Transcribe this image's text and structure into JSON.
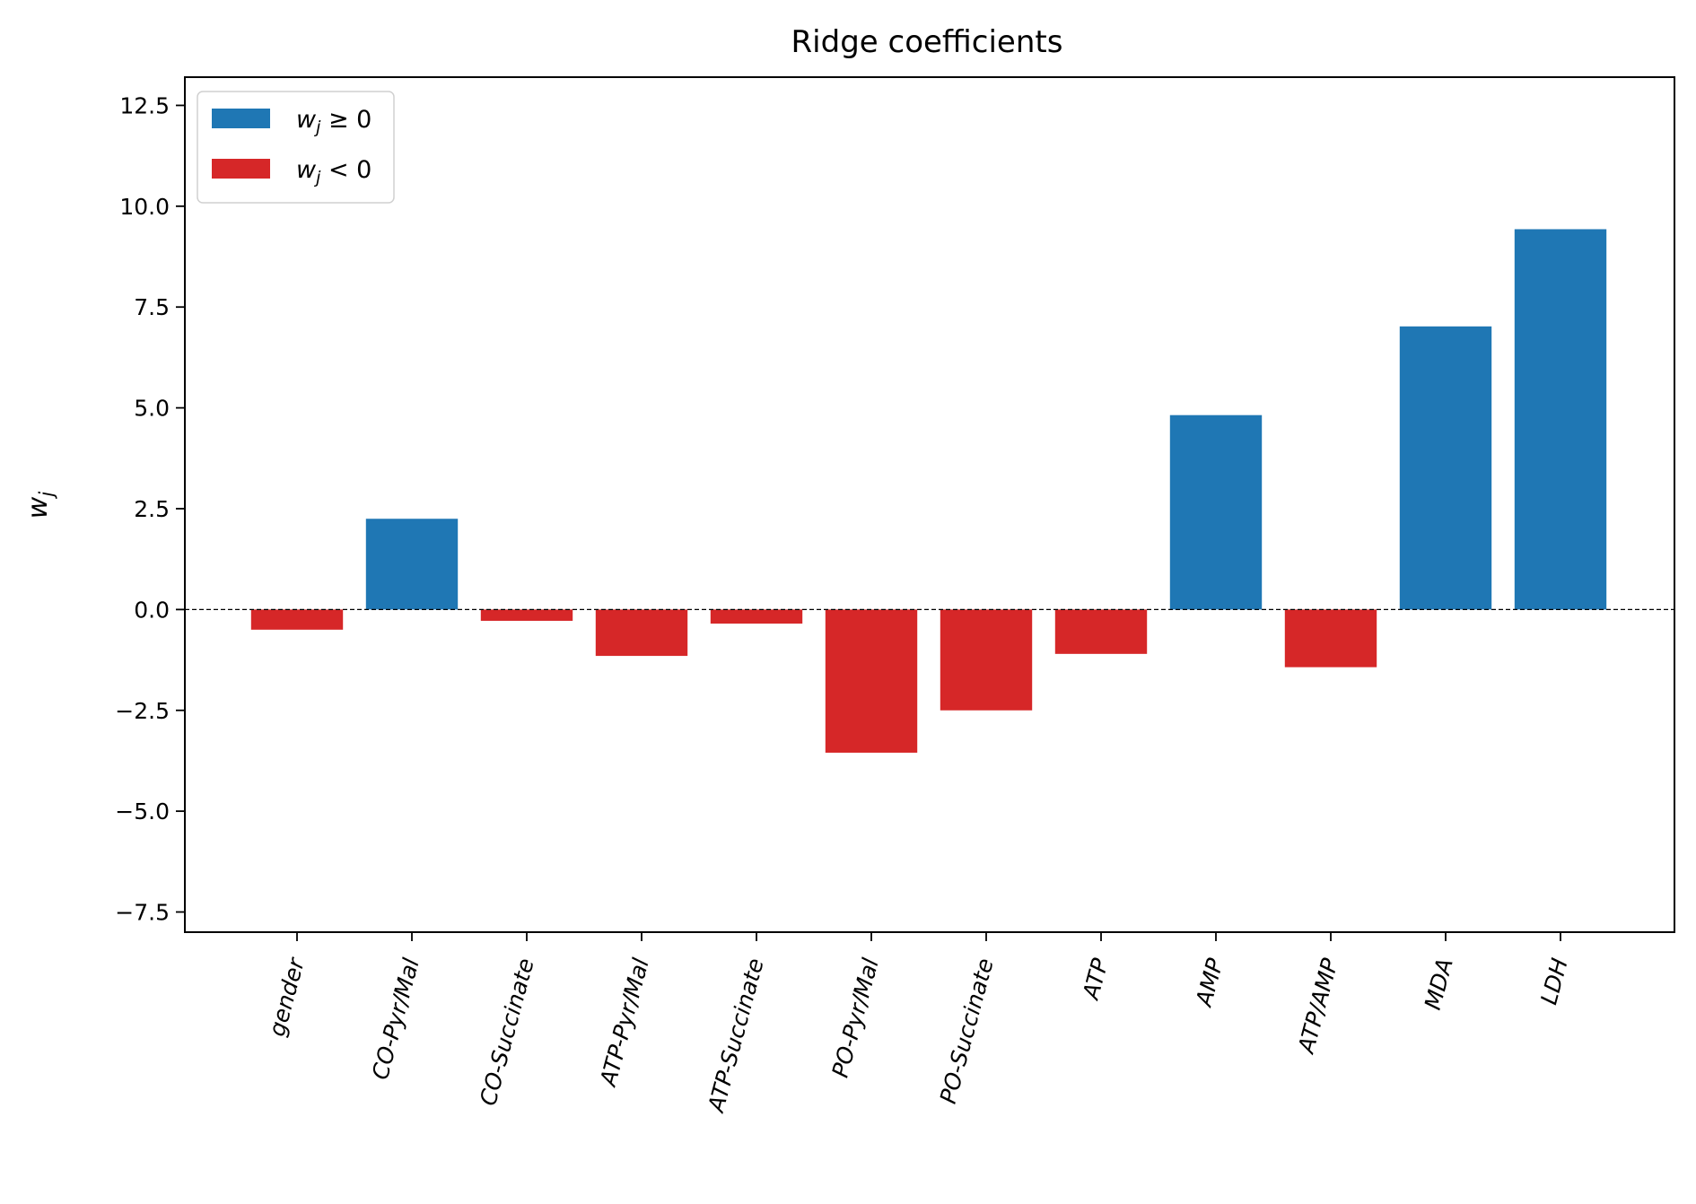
{
  "chart_data": {
    "type": "bar",
    "title": "Ridge coefficients",
    "xlabel": "",
    "ylabel": "w_j",
    "ylim": [
      -8.0,
      13.2
    ],
    "yticks": [
      12.5,
      10.0,
      7.5,
      5.0,
      2.5,
      0.0,
      -2.5,
      -5.0,
      -7.5
    ],
    "ytick_labels": [
      "12.5",
      "10.0",
      "7.5",
      "5.0",
      "2.5",
      "0.0",
      "−2.5",
      "−5.0",
      "−7.5"
    ],
    "categories": [
      "gender",
      "CO-Pyr/Mal",
      "CO-Succinate",
      "ATP-Pyr/Mal",
      "ATP-Succinate",
      "PO-Pyr/Mal",
      "PO-Succinate",
      "ATP",
      "AMP",
      "ATP/AMP",
      "MDA",
      "LDH"
    ],
    "values": [
      -0.5,
      2.25,
      -0.28,
      -1.15,
      -0.35,
      -3.55,
      -2.5,
      -1.1,
      4.82,
      -1.43,
      7.02,
      9.43
    ],
    "series": [
      {
        "name": "w_j ≥ 0",
        "color": "#1f77b4"
      },
      {
        "name": "w_j < 0",
        "color": "#d62728"
      }
    ],
    "legend_position": "top-left",
    "zero_line": "dashed",
    "grid": false,
    "xtick_rotation": 75
  }
}
